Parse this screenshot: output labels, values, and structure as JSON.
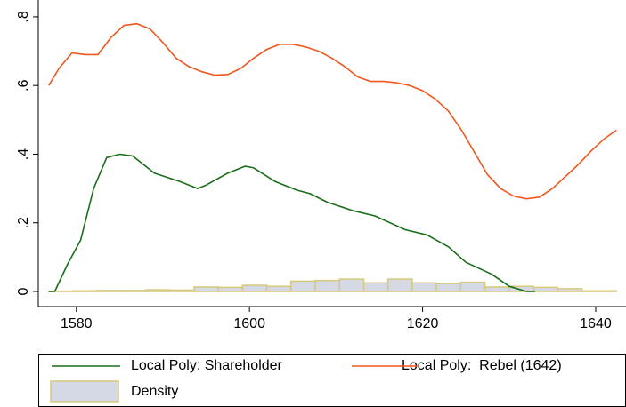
{
  "chart_data": {
    "type": "line",
    "xlim": [
      1575.6,
      1643.5
    ],
    "xticks": [
      1580,
      1600,
      1620,
      1640
    ],
    "ylim": [
      -0.044,
      0.849
    ],
    "yticks": [
      0,
      {
        "value": 0.2,
        "label": ".2"
      },
      {
        "value": 0.4,
        "label": ".4"
      },
      {
        "value": 0.6,
        "label": ".6"
      },
      {
        "value": 0.8,
        "label": ".8"
      }
    ],
    "series": [
      {
        "name": "Local Poly: Shareholder",
        "color": "#1a6e1a",
        "x": [
          1576.8,
          1577.5,
          1579,
          1580.5,
          1582,
          1583.5,
          1585,
          1586.5,
          1589,
          1592,
          1594,
          1595,
          1597.5,
          1599.5,
          1600.5,
          1603,
          1605.5,
          1607,
          1609,
          1612,
          1614.5,
          1618,
          1620.5,
          1623,
          1625,
          1628,
          1630,
          1632,
          1633
        ],
        "y": [
          0,
          0,
          0.08,
          0.15,
          0.3,
          0.39,
          0.4,
          0.395,
          0.345,
          0.32,
          0.3,
          0.31,
          0.345,
          0.365,
          0.36,
          0.32,
          0.295,
          0.285,
          0.26,
          0.235,
          0.22,
          0.18,
          0.165,
          0.13,
          0.085,
          0.05,
          0.015,
          0,
          0
        ]
      },
      {
        "name": "Local Poly:  Rebel (1642)",
        "color": "#f2561d",
        "x": [
          1576.8,
          1578,
          1579.5,
          1581,
          1582.5,
          1584,
          1585.5,
          1587,
          1588.5,
          1590,
          1591.5,
          1593,
          1594.5,
          1596,
          1597.5,
          1599,
          1600.5,
          1602,
          1603.5,
          1605,
          1606.5,
          1608,
          1609.5,
          1611,
          1612.5,
          1614,
          1615.5,
          1617,
          1618.5,
          1620,
          1621.5,
          1623,
          1624.5,
          1626,
          1627.5,
          1629,
          1630.5,
          1632,
          1633.5,
          1635,
          1636.5,
          1638,
          1639.5,
          1641,
          1642.4
        ],
        "y": [
          0.6,
          0.65,
          0.695,
          0.69,
          0.69,
          0.74,
          0.775,
          0.78,
          0.765,
          0.725,
          0.68,
          0.655,
          0.64,
          0.63,
          0.632,
          0.65,
          0.68,
          0.705,
          0.72,
          0.72,
          0.712,
          0.7,
          0.68,
          0.655,
          0.625,
          0.612,
          0.612,
          0.608,
          0.6,
          0.585,
          0.56,
          0.525,
          0.47,
          0.405,
          0.34,
          0.3,
          0.278,
          0.27,
          0.275,
          0.3,
          0.335,
          0.37,
          0.41,
          0.445,
          0.47
        ]
      }
    ],
    "histogram": {
      "name": "Density",
      "color": "#d5d9e6",
      "edge_color": "#d6c97a",
      "bins": [
        1576.8,
        1579.6,
        1582.4,
        1585.2,
        1588.0,
        1590.8,
        1593.6,
        1596.4,
        1599.2,
        1602.0,
        1604.8,
        1607.6,
        1610.4,
        1613.2,
        1616.0,
        1618.8,
        1621.6,
        1624.4,
        1627.2,
        1630.0,
        1632.8,
        1635.6,
        1638.4,
        1642.4
      ],
      "counts": [
        0.001,
        0.002,
        0.003,
        0.003,
        0.005,
        0.004,
        0.013,
        0.012,
        0.018,
        0.015,
        0.03,
        0.032,
        0.036,
        0.025,
        0.036,
        0.025,
        0.023,
        0.027,
        0.013,
        0.015,
        0.012,
        0.008,
        0.002
      ]
    }
  }
}
